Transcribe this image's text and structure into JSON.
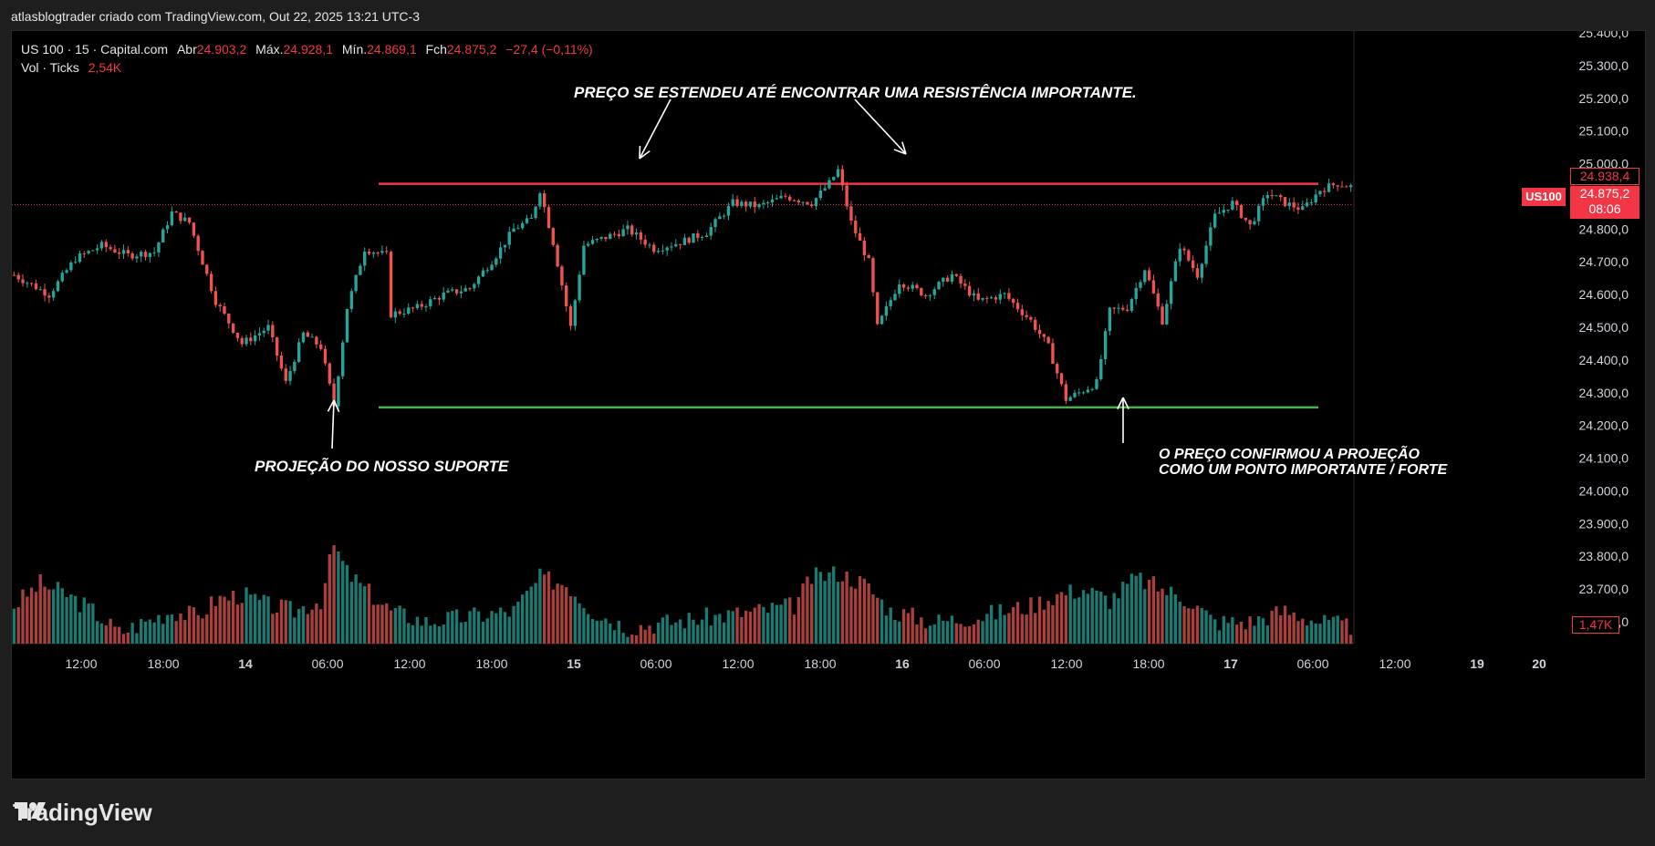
{
  "header": {
    "text": "atlasblogtrader criado com TradingView.com, Out 22, 2025 13:21 UTC-3"
  },
  "legend": {
    "symbol": "US 100 · 15 · Capital.com",
    "open_label": "Abr",
    "open": "24.903,2",
    "high_label": "Máx.",
    "high": "24.928,1",
    "low_label": "Mín.",
    "low": "24.869,1",
    "close_label": "Fch",
    "close": "24.875,2",
    "change": "−27,4 (−0,11%)",
    "volume_label": "Vol · Ticks",
    "volume": "2,54K"
  },
  "annotations": {
    "resistance": "PREÇO SE ESTENDEU ATÉ ENCONTRAR UMA RESISTÊNCIA IMPORTANTE.",
    "support": "PROJEÇÃO DO NOSSO SUPORTE",
    "confirm_line1": "O PREÇO CONFIRMOU A PROJEÇÃO",
    "confirm_line2": "COMO UM PONTO IMPORTANTE / FORTE"
  },
  "price_tags": {
    "line_price": "24.938,4",
    "symbol_tag": "US100",
    "last_price": "24.875,2",
    "countdown": "08:06",
    "volume_tag": "1,47K"
  },
  "footer": {
    "brand": "TradingView"
  },
  "colors": {
    "up": "#26a69a",
    "down": "#ef5350",
    "resistance": "#f23645",
    "support": "#4caf50",
    "background": "#000000"
  },
  "chart_data": {
    "type": "candlestick",
    "y_axis": {
      "min": 23500,
      "max": 25400,
      "ticks": [
        "25.400,0",
        "25.300,0",
        "25.200,0",
        "25.100,0",
        "25.000,0",
        "24.900,0",
        "24.800,0",
        "24.700,0",
        "24.600,0",
        "24.500,0",
        "24.400,0",
        "24.300,0",
        "24.200,0",
        "24.100,0",
        "24.000,0",
        "23.900,0",
        "23.800,0",
        "23.700,0",
        "23.600,0"
      ],
      "tick_values": [
        25400,
        25300,
        25200,
        25100,
        25000,
        24900,
        24800,
        24700,
        24600,
        24500,
        24400,
        24300,
        24200,
        24100,
        24000,
        23900,
        23800,
        23700,
        23600
      ]
    },
    "x_axis": {
      "ticks": [
        "12:00",
        "18:00",
        "14",
        "06:00",
        "12:00",
        "18:00",
        "15",
        "06:00",
        "12:00",
        "18:00",
        "16",
        "06:00",
        "12:00",
        "18:00",
        "17",
        "06:00",
        "12:00",
        "19",
        "20"
      ],
      "bold": [
        "14",
        "15",
        "16",
        "17",
        "19",
        "20"
      ]
    },
    "resistance_level": 24938.4,
    "support_level": 24255,
    "last_price": 24875.2,
    "price_path": [
      [
        0,
        24660
      ],
      [
        8,
        24600
      ],
      [
        14,
        24710
      ],
      [
        20,
        24750
      ],
      [
        26,
        24720
      ],
      [
        32,
        24730
      ],
      [
        36,
        24850
      ],
      [
        40,
        24820
      ],
      [
        46,
        24580
      ],
      [
        52,
        24450
      ],
      [
        58,
        24500
      ],
      [
        62,
        24330
      ],
      [
        66,
        24480
      ],
      [
        70,
        24440
      ],
      [
        73,
        24260
      ],
      [
        76,
        24560
      ],
      [
        80,
        24740
      ],
      [
        85,
        24720
      ],
      [
        86,
        24540
      ],
      [
        92,
        24560
      ],
      [
        98,
        24600
      ],
      [
        104,
        24620
      ],
      [
        110,
        24720
      ],
      [
        114,
        24800
      ],
      [
        118,
        24830
      ],
      [
        120,
        24920
      ],
      [
        123,
        24760
      ],
      [
        127,
        24500
      ],
      [
        130,
        24750
      ],
      [
        136,
        24780
      ],
      [
        140,
        24800
      ],
      [
        146,
        24740
      ],
      [
        152,
        24760
      ],
      [
        158,
        24790
      ],
      [
        164,
        24880
      ],
      [
        170,
        24870
      ],
      [
        176,
        24900
      ],
      [
        182,
        24880
      ],
      [
        186,
        24940
      ],
      [
        188,
        24980
      ],
      [
        191,
        24820
      ],
      [
        195,
        24700
      ],
      [
        197,
        24500
      ],
      [
        202,
        24640
      ],
      [
        208,
        24600
      ],
      [
        214,
        24660
      ],
      [
        220,
        24580
      ],
      [
        226,
        24600
      ],
      [
        232,
        24520
      ],
      [
        236,
        24440
      ],
      [
        240,
        24280
      ],
      [
        243,
        24300
      ],
      [
        247,
        24330
      ],
      [
        250,
        24550
      ],
      [
        254,
        24560
      ],
      [
        258,
        24680
      ],
      [
        262,
        24520
      ],
      [
        266,
        24750
      ],
      [
        270,
        24660
      ],
      [
        274,
        24840
      ],
      [
        278,
        24880
      ],
      [
        282,
        24810
      ],
      [
        286,
        24910
      ],
      [
        290,
        24880
      ],
      [
        294,
        24860
      ],
      [
        298,
        24920
      ],
      [
        302,
        24940
      ],
      [
        305,
        24930
      ]
    ],
    "volume_profile": [
      [
        0,
        0.35
      ],
      [
        6,
        0.55
      ],
      [
        12,
        0.45
      ],
      [
        18,
        0.3
      ],
      [
        24,
        0.1
      ],
      [
        30,
        0.2
      ],
      [
        36,
        0.3
      ],
      [
        42,
        0.25
      ],
      [
        46,
        0.4
      ],
      [
        52,
        0.45
      ],
      [
        58,
        0.35
      ],
      [
        64,
        0.3
      ],
      [
        70,
        0.4
      ],
      [
        73,
        0.9
      ],
      [
        76,
        0.65
      ],
      [
        80,
        0.5
      ],
      [
        86,
        0.3
      ],
      [
        94,
        0.2
      ],
      [
        104,
        0.25
      ],
      [
        114,
        0.3
      ],
      [
        120,
        0.6
      ],
      [
        126,
        0.55
      ],
      [
        132,
        0.3
      ],
      [
        140,
        0.15
      ],
      [
        150,
        0.2
      ],
      [
        160,
        0.25
      ],
      [
        170,
        0.3
      ],
      [
        178,
        0.35
      ],
      [
        182,
        0.6
      ],
      [
        188,
        0.65
      ],
      [
        194,
        0.55
      ],
      [
        200,
        0.3
      ],
      [
        210,
        0.2
      ],
      [
        220,
        0.25
      ],
      [
        232,
        0.35
      ],
      [
        238,
        0.45
      ],
      [
        244,
        0.5
      ],
      [
        250,
        0.4
      ],
      [
        256,
        0.6
      ],
      [
        262,
        0.5
      ],
      [
        268,
        0.4
      ],
      [
        274,
        0.2
      ],
      [
        282,
        0.2
      ],
      [
        290,
        0.3
      ],
      [
        298,
        0.2
      ],
      [
        305,
        0.15
      ]
    ]
  }
}
